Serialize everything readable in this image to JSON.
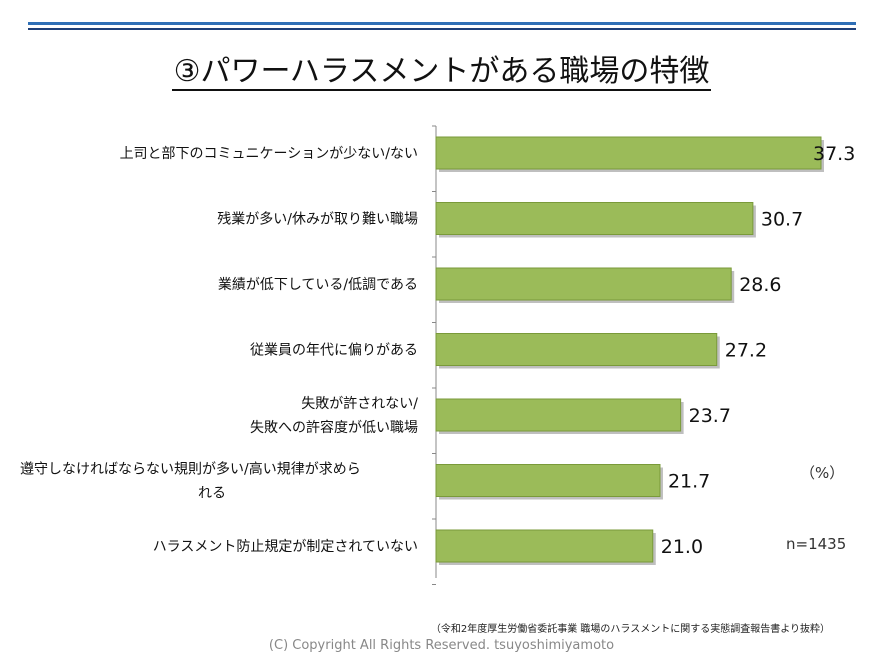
{
  "title": "③パワーハラスメントがある職場の特徴",
  "unit_label": "（%）",
  "n_label": "n=1435",
  "source": "（令和2年度厚生労働省委託事業 職場のハラスメントに関する実態調査報告書より抜粋）",
  "copyright": "(C) Copyright All Rights Reserved. tsuyoshimiyamoto",
  "chart_data": {
    "type": "bar",
    "orientation": "horizontal",
    "categories": [
      [
        "上司と部下のコミュニケーションが少ない/ない"
      ],
      [
        "残業が多い/休みが取り難い職場"
      ],
      [
        "業績が低下している/低調である"
      ],
      [
        "従業員の年代に偏りがある"
      ],
      [
        "失敗が許されない/",
        "失敗への許容度が低い職場"
      ],
      [
        "遵守しなければならない規則が多い/高い規律が求めら",
        "れる"
      ],
      [
        "ハラスメント防止規定が制定されていない"
      ]
    ],
    "values": [
      37.3,
      30.7,
      28.6,
      27.2,
      23.7,
      21.7,
      21.0
    ],
    "value_labels": [
      "37.3",
      "30.7",
      "28.6",
      "27.2",
      "23.7",
      "21.7",
      "21.0"
    ],
    "xlim": [
      0,
      40
    ],
    "bar_color": "#9bbb59",
    "bar_border": "#7a9a3a",
    "grid": false
  }
}
